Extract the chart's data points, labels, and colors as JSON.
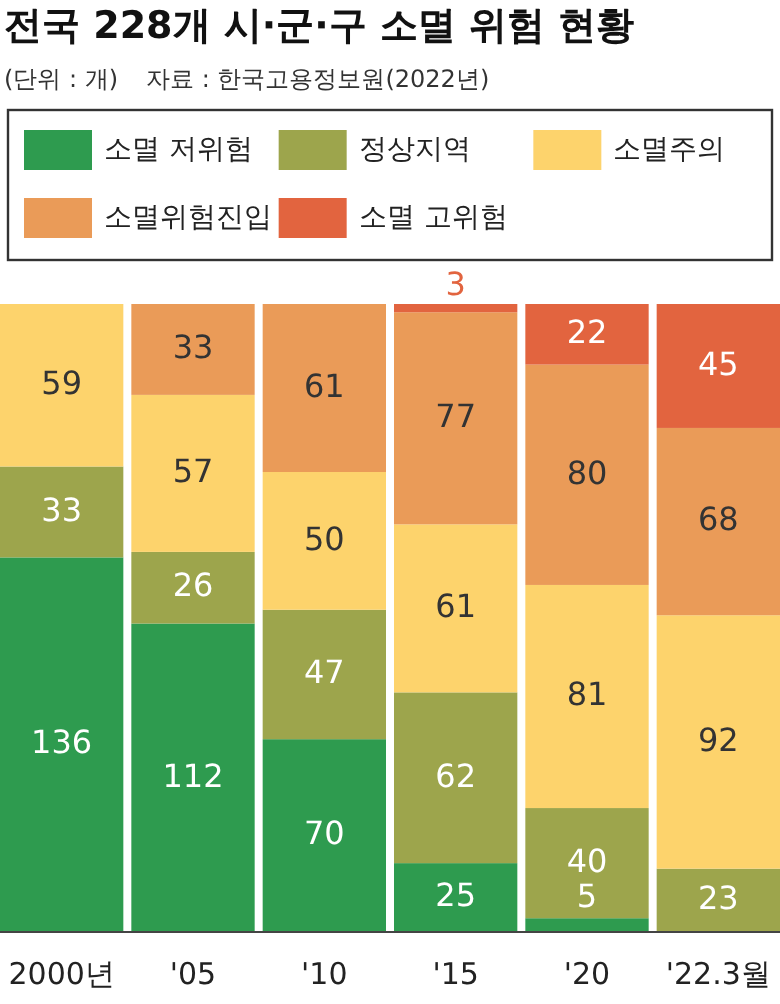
{
  "chart_data": {
    "type": "bar",
    "stacked": true,
    "title": "전국 228개 시·군·구 소멸 위험 현황",
    "subtitle": "(단위 : 개)",
    "annotations": [
      "자료 : 한국고용정보원(2022년)"
    ],
    "categories": [
      "2000년",
      "'05",
      "'10",
      "'15",
      "'20",
      "'22.3월"
    ],
    "legend": "top",
    "series": [
      {
        "name": "소멸 저위험",
        "color": "#2e9b4f",
        "values": [
          136,
          112,
          70,
          25,
          5,
          0
        ],
        "value_labels": [
          "136",
          "112",
          "70",
          "25",
          "5",
          null
        ]
      },
      {
        "name": "정상지역",
        "color": "#9da54c",
        "values": [
          33,
          26,
          47,
          62,
          40,
          23
        ],
        "value_labels": [
          "33",
          "26",
          "47",
          "62",
          "40",
          "23"
        ]
      },
      {
        "name": "소멸주의",
        "color": "#fdd36c",
        "values": [
          59,
          57,
          50,
          61,
          81,
          92
        ],
        "value_labels": [
          "59",
          "57",
          "50",
          "61",
          "81",
          "92"
        ]
      },
      {
        "name": "소멸위험진입",
        "color": "#ea9b58",
        "values": [
          0,
          33,
          61,
          77,
          80,
          68
        ],
        "value_labels": [
          null,
          "33",
          "61",
          "77",
          "80",
          "68"
        ]
      },
      {
        "name": "소멸 고위험",
        "color": "#e2643f",
        "values": [
          0,
          0,
          0,
          3,
          22,
          45
        ],
        "value_labels": [
          null,
          null,
          null,
          "3",
          "22",
          "45"
        ]
      }
    ]
  }
}
